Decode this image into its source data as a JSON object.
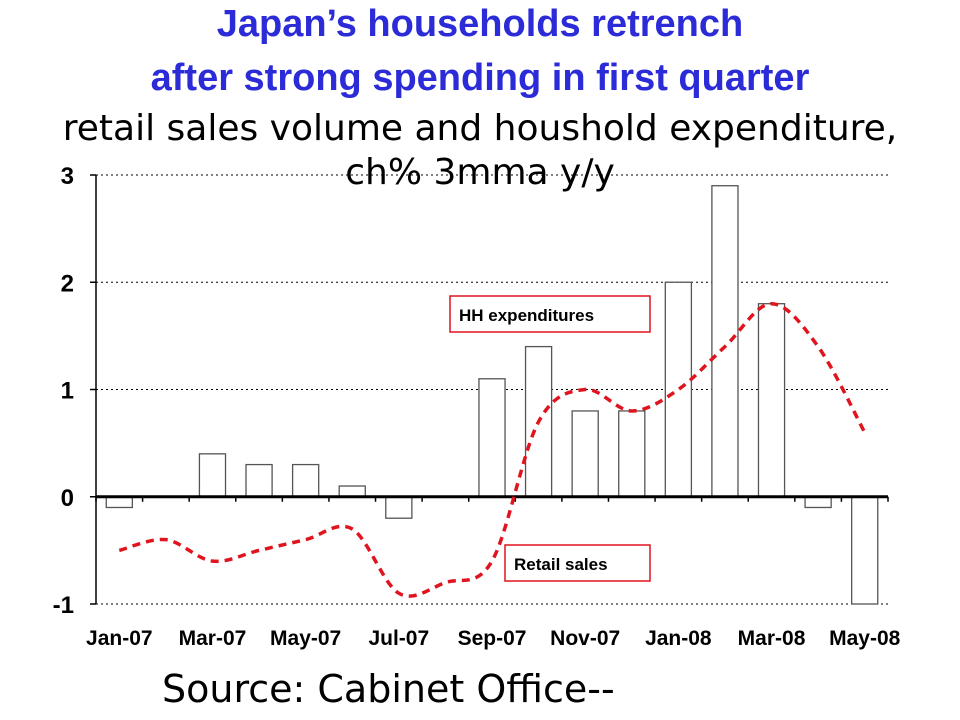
{
  "title_lines": [
    "Japan’s households retrench",
    "after strong spending in first quarter"
  ],
  "subtitle_lines": [
    "retail sales volume and houshold expenditure,",
    "ch% 3mma y/y"
  ],
  "source": "Source: Cabinet Office--",
  "colors": {
    "title": "#2b2bd8",
    "retail_line": "#e0141e",
    "bar_stroke": "#555555"
  },
  "chart_data": {
    "type": "bar",
    "title": "Japan’s households retrench after strong spending in first quarter",
    "subtitle": "retail sales volume and houshold expenditure, ch% 3mma y/y",
    "ylim": [
      -1,
      3
    ],
    "yticks": [
      -1,
      0,
      1,
      2,
      3
    ],
    "grid": true,
    "categories": [
      "Jan-07",
      "Feb-07",
      "Mar-07",
      "Apr-07",
      "May-07",
      "Jun-07",
      "Jul-07",
      "Aug-07",
      "Sep-07",
      "Oct-07",
      "Nov-07",
      "Dec-07",
      "Jan-08",
      "Feb-08",
      "Mar-08",
      "Apr-08",
      "May-08"
    ],
    "x_tick_labels": [
      "Jan-07",
      "Mar-07",
      "May-07",
      "Jul-07",
      "Sep-07",
      "Nov-07",
      "Jan-08",
      "Mar-08",
      "May-08"
    ],
    "series": [
      {
        "name": "HH expenditures",
        "type": "bar",
        "values": [
          -0.1,
          null,
          0.4,
          0.3,
          0.3,
          0.1,
          -0.2,
          null,
          1.1,
          1.4,
          0.8,
          0.8,
          2.0,
          2.9,
          1.8,
          -0.1,
          -1.0
        ]
      },
      {
        "name": "Retail sales",
        "type": "line",
        "style": "dashed",
        "values": [
          -0.5,
          -0.4,
          -0.6,
          -0.5,
          -0.4,
          -0.3,
          -0.9,
          -0.8,
          -0.6,
          0.7,
          1.0,
          0.8,
          1.0,
          1.4,
          1.8,
          1.4,
          0.6
        ]
      }
    ],
    "annotations": [
      {
        "text": "HH expenditures",
        "series": "HH expenditures"
      },
      {
        "text": "Retail sales",
        "series": "Retail sales"
      }
    ]
  }
}
